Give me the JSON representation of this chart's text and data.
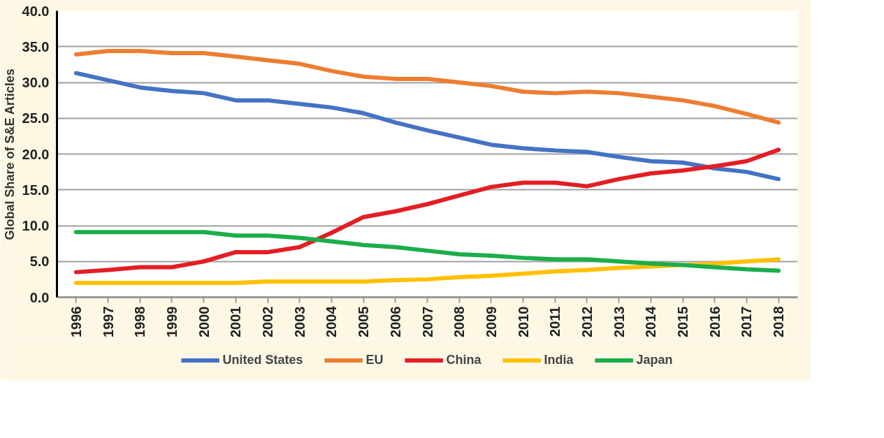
{
  "chart_data": {
    "type": "line",
    "ylabel": "Global Share of S&E Articles",
    "categories": [
      "1996",
      "1997",
      "1998",
      "1999",
      "2000",
      "2001",
      "2002",
      "2003",
      "2004",
      "2005",
      "2006",
      "2007",
      "2008",
      "2009",
      "2010",
      "2011",
      "2012",
      "2013",
      "2014",
      "2015",
      "2016",
      "2017",
      "2018"
    ],
    "series": [
      {
        "name": "United States",
        "color": "#4472c4",
        "values": [
          31.3,
          30.3,
          29.3,
          28.8,
          28.5,
          27.5,
          27.5,
          27.0,
          26.5,
          25.7,
          24.4,
          23.3,
          22.3,
          21.3,
          20.8,
          20.5,
          20.3,
          19.6,
          19.0,
          18.8,
          18.0,
          17.5,
          16.5
        ]
      },
      {
        "name": "EU",
        "color": "#ed7d31",
        "values": [
          33.9,
          34.4,
          34.4,
          34.1,
          34.1,
          33.6,
          33.1,
          32.6,
          31.6,
          30.8,
          30.5,
          30.5,
          30.0,
          29.5,
          28.7,
          28.5,
          28.7,
          28.5,
          28.0,
          27.5,
          26.7,
          25.6,
          24.4
        ]
      },
      {
        "name": "China",
        "color": "#e31e24",
        "values": [
          3.5,
          3.8,
          4.2,
          4.2,
          5.0,
          6.3,
          6.3,
          7.0,
          9.0,
          11.2,
          12.0,
          13.0,
          14.2,
          15.4,
          16.0,
          16.0,
          15.5,
          16.5,
          17.3,
          17.7,
          18.3,
          19.0,
          20.6
        ]
      },
      {
        "name": "India",
        "color": "#ffc000",
        "values": [
          2.0,
          2.0,
          2.0,
          2.0,
          2.0,
          2.0,
          2.2,
          2.2,
          2.2,
          2.2,
          2.4,
          2.5,
          2.8,
          3.0,
          3.3,
          3.6,
          3.8,
          4.1,
          4.3,
          4.5,
          4.7,
          5.0,
          5.3
        ]
      },
      {
        "name": "Japan",
        "color": "#1aae4a",
        "values": [
          9.1,
          9.1,
          9.1,
          9.1,
          9.1,
          8.6,
          8.6,
          8.3,
          7.8,
          7.3,
          7.0,
          6.5,
          6.0,
          5.8,
          5.5,
          5.3,
          5.3,
          5.0,
          4.7,
          4.5,
          4.2,
          3.9,
          3.7
        ]
      }
    ],
    "ylim": [
      0,
      40
    ],
    "yticks": [
      {
        "value": 0,
        "label": "0.0"
      },
      {
        "value": 5,
        "label": "5.0"
      },
      {
        "value": 10,
        "label": "10.0"
      },
      {
        "value": 15,
        "label": "15.0"
      },
      {
        "value": 20,
        "label": "20.0"
      },
      {
        "value": 25,
        "label": "25.0"
      },
      {
        "value": 30,
        "label": "30.0"
      },
      {
        "value": 35,
        "label": "35.0"
      },
      {
        "value": 40,
        "label": "40.0"
      }
    ],
    "grid": "y",
    "legend": "bottom",
    "line_style": "solid",
    "marker": "none"
  }
}
